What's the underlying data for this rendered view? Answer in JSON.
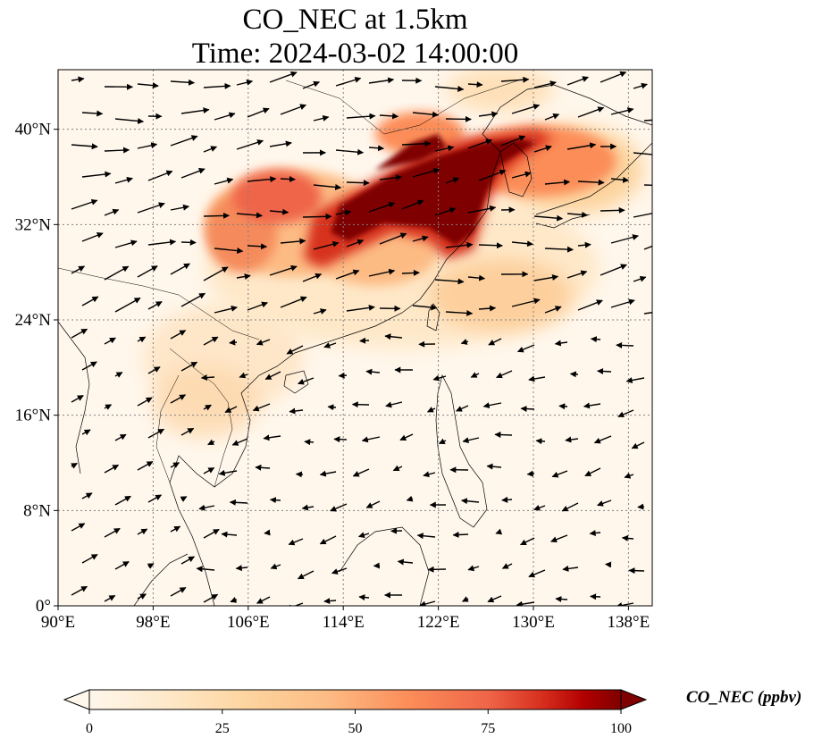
{
  "title": {
    "line1": "CO_NEC at 1.5km",
    "line2": "Time: 2024-03-02 14:00:00"
  },
  "map": {
    "extent": {
      "lon": [
        90,
        140
      ],
      "lat": [
        0,
        45
      ]
    },
    "lon_ticks": [
      "90°E",
      "98°E",
      "106°E",
      "114°E",
      "122°E",
      "130°E",
      "138°E"
    ],
    "lat_ticks": [
      "0°",
      "8°N",
      "16°N",
      "24°N",
      "32°N",
      "40°N"
    ],
    "gridlines": "dotted"
  },
  "colorbar": {
    "label": "CO_NEC (ppbv)",
    "ticks": [
      "0",
      "25",
      "50",
      "75",
      "100"
    ],
    "colormap": "OrRd",
    "range": [
      0,
      100
    ],
    "extend": "both"
  },
  "colors": {
    "low": "#fff7ec",
    "mid": "#fdbb84",
    "high": "#d7301f",
    "max": "#7f0000"
  }
}
